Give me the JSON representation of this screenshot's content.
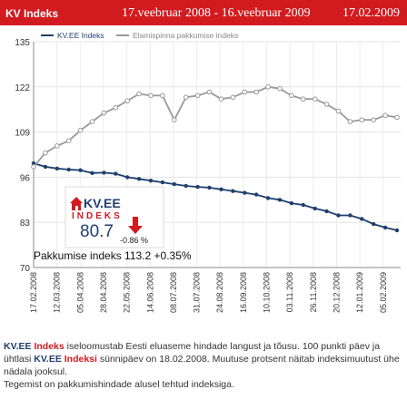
{
  "header": {
    "title": "KV Indeks",
    "date_range": "17.veebruar 2008 - 16.veebruar 2009",
    "current_date": "17.02.2009",
    "background": "#d21b1f"
  },
  "chart_data": {
    "type": "line",
    "title": "",
    "xlabel": "",
    "ylabel": "",
    "ylim": [
      70,
      135
    ],
    "yticks": [
      70,
      83,
      96,
      109,
      122,
      135
    ],
    "grid": true,
    "legend_position": "top-left",
    "x_tick_labels": [
      "17.02.2008",
      "12.03.2008",
      "05.04.2008",
      "28.04.2008",
      "22.05.2008",
      "14.06.2008",
      "08.07.2008",
      "31.07.2008",
      "24.08.2008",
      "16.09.2008",
      "10.10.2008",
      "03.11.2008",
      "26.11.2008",
      "20.12.2008",
      "12.01.2009",
      "05.02.2009"
    ],
    "series": [
      {
        "name": "KV.EE Indeks",
        "color": "#1f3f6e",
        "values": [
          100,
          99,
          98.5,
          98.2,
          98,
          97.2,
          97.3,
          97,
          96,
          95.5,
          95,
          94.5,
          94,
          93.5,
          93.2,
          93,
          92.5,
          92,
          91.5,
          91,
          90,
          89.5,
          88.5,
          88,
          87,
          86.2,
          85,
          85,
          84,
          82.5,
          81.5,
          80.7
        ]
      },
      {
        "name": "Elamispinna pakkumise indeks",
        "color": "#999999",
        "values": [
          99,
          103,
          105,
          106.5,
          109.5,
          112,
          114.5,
          116,
          118,
          120,
          119.5,
          119.5,
          112.5,
          119,
          119.5,
          120.5,
          118.5,
          119,
          120.5,
          120.5,
          122,
          121.5,
          119.5,
          118.5,
          118.5,
          117,
          115,
          112,
          112.5,
          112.5,
          113.8,
          113.2
        ]
      }
    ]
  },
  "indicator": {
    "logo_top": "KV.EE",
    "logo_bottom": "INDEKS",
    "value": "80.7",
    "change": "-0.86 %",
    "arrow_color": "#d21b1f"
  },
  "supply_summary": "Pakkumise indeks 113.2 +0.35%",
  "description": {
    "p1_brand_kv": "KV.EE",
    "p1_brand_word": "Indeks",
    "p1_text_a": " iseloomustab Eesti eluaseme hindade langust ja tõusu. 100 punkti päev ja ühtlasi ",
    "p1_brand_kv2": "KV.EE",
    "p1_brand_word2": "Indeksi",
    "p1_text_b": " sünnipäev on 18.02.2008. Muutuse protsent näitab indeksimuutust ühe nädala jooksul.",
    "p2": "Tegemist on pakkumishindade alusel tehtud indeksiga."
  }
}
